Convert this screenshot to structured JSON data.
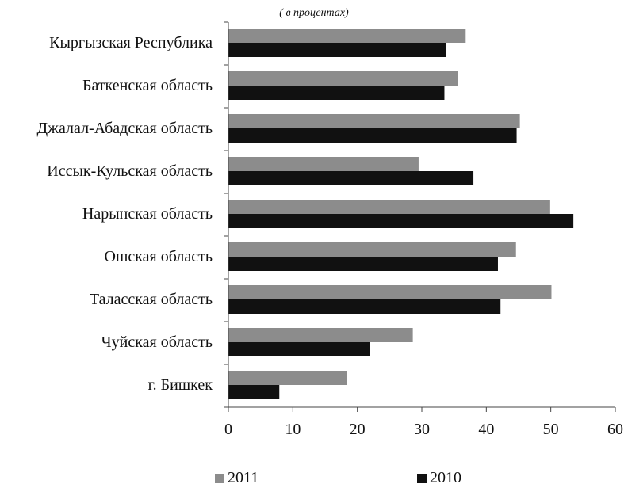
{
  "chart_data": {
    "type": "bar",
    "orientation": "horizontal",
    "title": "",
    "subtitle": "( в процентах)",
    "categories": [
      "Кыргызская Республика",
      "Баткенская область",
      "Джалал-Абадская область",
      "Иссык-Кульская область",
      "Нарынская область",
      "Ошская область",
      "Таласская область",
      "Чуйская область",
      "г. Бишкек"
    ],
    "series": [
      {
        "name": "2011",
        "color": "#8c8c8c",
        "values": [
          36.8,
          35.6,
          45.2,
          29.5,
          49.9,
          44.6,
          50.1,
          28.6,
          18.4
        ]
      },
      {
        "name": "2010",
        "color": "#111111",
        "values": [
          33.7,
          33.5,
          44.7,
          38.0,
          53.5,
          41.8,
          42.2,
          21.9,
          7.9
        ]
      }
    ],
    "xlim": [
      0,
      60
    ],
    "xticks": [
      0,
      10,
      20,
      30,
      40,
      50,
      60
    ],
    "xlabel": "",
    "ylabel": "",
    "grid": false,
    "legend_position": "bottom"
  }
}
